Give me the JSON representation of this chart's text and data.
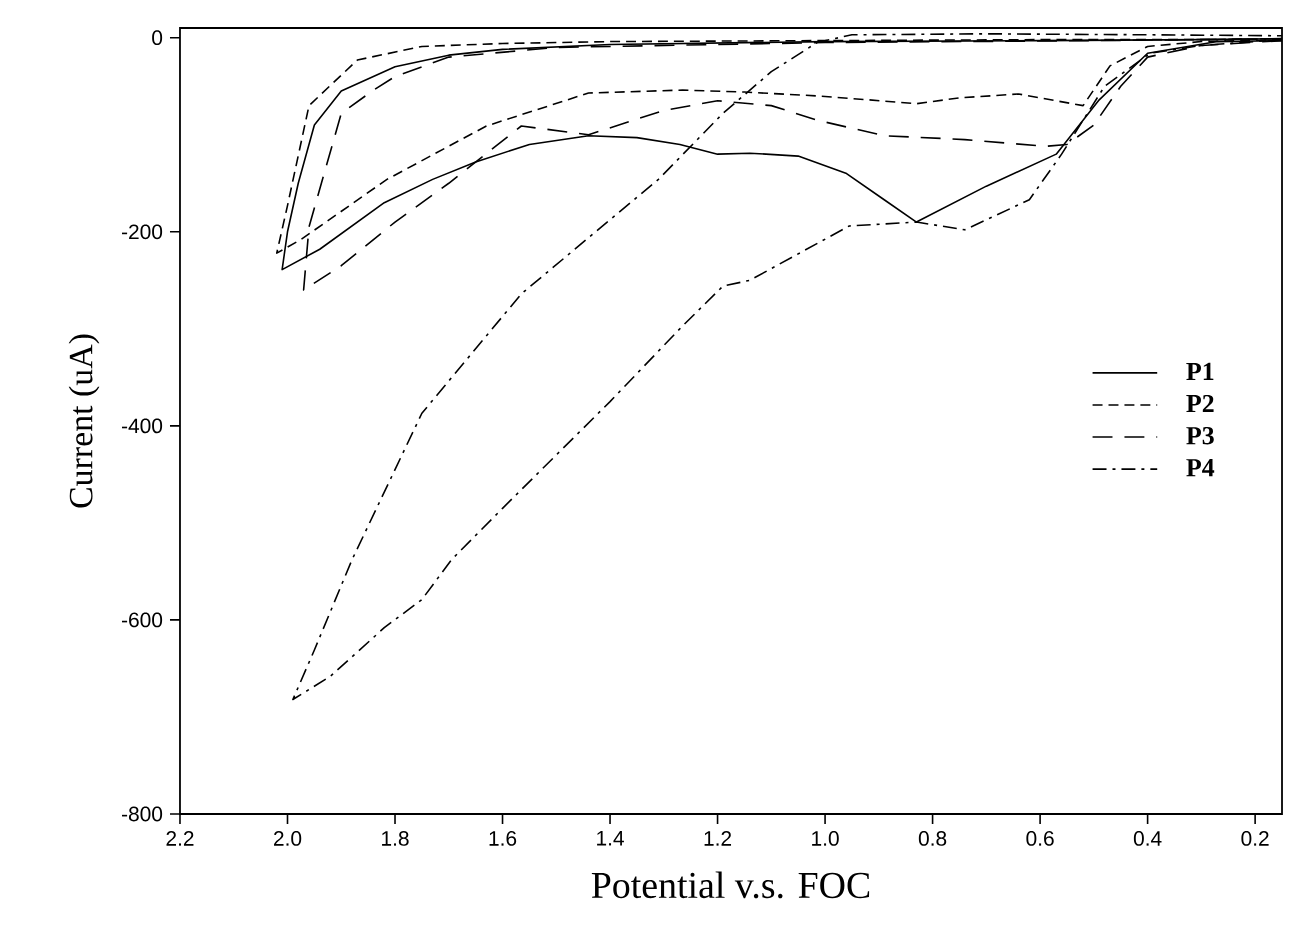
{
  "chart_data": {
    "type": "line",
    "xlabel": "Potential v.s. FOC",
    "ylabel": "Current (uA)",
    "xlim": [
      2.2,
      0.15
    ],
    "ylim": [
      -800,
      10
    ],
    "xticks": [
      {
        "value": 2.2,
        "label": "2.2"
      },
      {
        "value": 2.0,
        "label": "2.0"
      },
      {
        "value": 1.8,
        "label": "1.8"
      },
      {
        "value": 1.6,
        "label": "1.6"
      },
      {
        "value": 1.4,
        "label": "1.4"
      },
      {
        "value": 1.2,
        "label": "1.2"
      },
      {
        "value": 1.0,
        "label": "1.0"
      },
      {
        "value": 0.8,
        "label": "0.8"
      },
      {
        "value": 0.6,
        "label": "0.6"
      },
      {
        "value": 0.4,
        "label": "0.4"
      },
      {
        "value": 0.2,
        "label": "0.2"
      }
    ],
    "yticks": [
      -800,
      -600,
      -400,
      -200,
      0
    ],
    "grid": false,
    "legend": "right",
    "marker": "none",
    "series": [
      {
        "name": "P1",
        "color": "#000000",
        "line_style": "solid",
        "x": [
          0.15,
          0.27,
          0.4,
          0.49,
          0.57,
          0.7,
          0.83,
          0.89,
          0.96,
          1.05,
          1.14,
          1.2,
          1.27,
          1.35,
          1.44,
          1.55,
          1.65,
          1.73,
          1.82,
          1.94,
          2.01,
          2.0,
          1.98,
          1.95,
          1.9,
          1.8,
          1.7,
          1.6,
          1.4,
          1.0,
          0.6,
          0.3,
          0.15
        ],
        "values": [
          -3,
          -4,
          -16,
          -64,
          -120,
          -153,
          -190,
          -167,
          -140,
          -122,
          -119,
          -120,
          -110,
          -103,
          -101,
          -110,
          -128,
          -146,
          -170,
          -218,
          -239,
          -200,
          -150,
          -90,
          -55,
          -30,
          -18,
          -12,
          -7,
          -4,
          -3,
          -2,
          -1
        ]
      },
      {
        "name": "P2",
        "color": "#000000",
        "line_style": "dashed",
        "x": [
          0.15,
          0.3,
          0.4,
          0.47,
          0.52,
          0.64,
          0.75,
          0.83,
          0.92,
          1.015,
          1.15,
          1.265,
          1.44,
          1.63,
          1.815,
          1.975,
          2.02,
          2.0,
          1.96,
          1.87,
          1.75,
          1.6,
          1.4,
          1.0,
          0.6,
          0.3,
          0.15
        ],
        "values": [
          -2,
          -4,
          -9,
          -29,
          -70,
          -58,
          -62,
          -68,
          -64,
          -60,
          -56,
          -54,
          -57,
          -91,
          -146,
          -208,
          -222,
          -173,
          -70,
          -23,
          -9,
          -6,
          -4,
          -3,
          -2,
          -2,
          -1
        ]
      },
      {
        "name": "P3",
        "color": "#000000",
        "line_style": "long dashed",
        "x": [
          0.15,
          0.3,
          0.4,
          0.45,
          0.5,
          0.55,
          0.59,
          0.74,
          0.89,
          1.015,
          1.1,
          1.2,
          1.3,
          1.44,
          1.565,
          1.7,
          1.8,
          1.9,
          1.97,
          1.96,
          1.9,
          1.84,
          1.8,
          1.7,
          1.5,
          1.0,
          0.5,
          0.15
        ],
        "values": [
          -3,
          -8,
          -20,
          -50,
          -90,
          -110,
          -112,
          -105,
          -101,
          -85,
          -70,
          -65,
          -75,
          -100,
          -91,
          -150,
          -190,
          -235,
          -260,
          -195,
          -78,
          -54,
          -40,
          -20,
          -10,
          -5,
          -3,
          -1
        ]
      },
      {
        "name": "P4",
        "color": "#000000",
        "line_style": "dash dot",
        "x": [
          0.15,
          0.3,
          0.395,
          0.48,
          0.56,
          0.62,
          0.74,
          0.83,
          0.955,
          1.14,
          1.19,
          1.265,
          1.4,
          1.5,
          1.6,
          1.695,
          1.75,
          1.82,
          1.92,
          1.99,
          1.95,
          1.88,
          1.75,
          1.565,
          1.31,
          1.19,
          1.1,
          1.015,
          0.95,
          0.7,
          0.4,
          0.15
        ],
        "values": [
          -2,
          -8,
          -16,
          -50,
          -120,
          -167,
          -198,
          -190,
          -194,
          -250,
          -256,
          -297,
          -375,
          -430,
          -485,
          -538,
          -579,
          -608,
          -658,
          -682,
          -631,
          -538,
          -387,
          -264,
          -146,
          -78,
          -35,
          -5,
          3,
          4,
          3,
          2
        ]
      }
    ]
  }
}
